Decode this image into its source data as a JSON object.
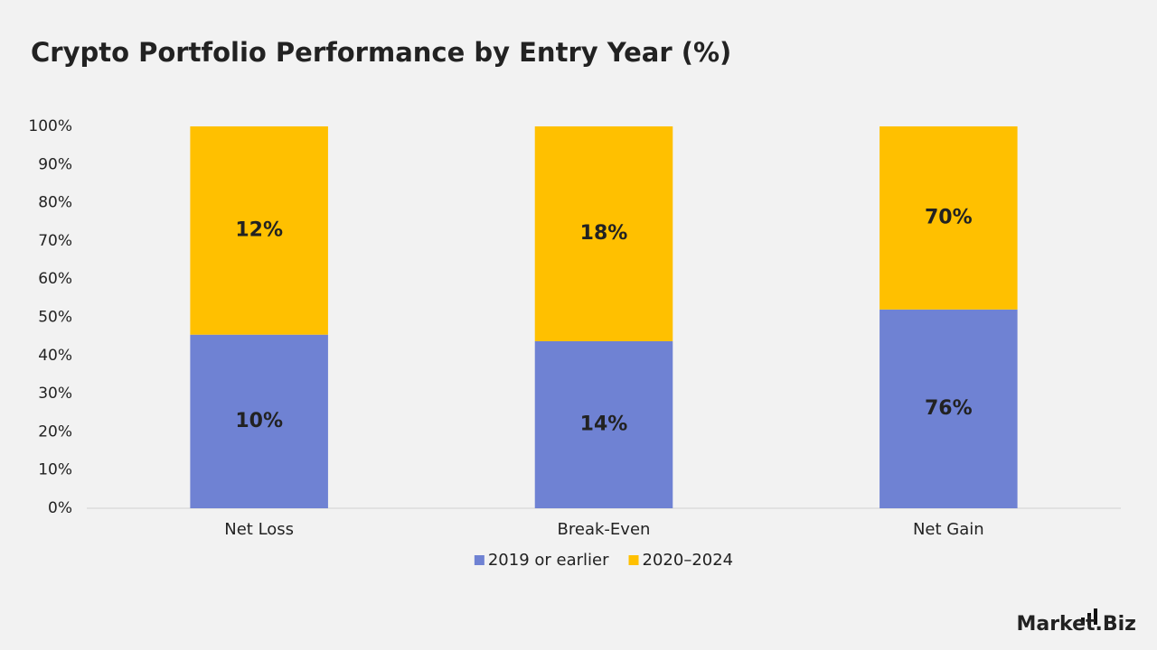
{
  "chart_data": {
    "type": "bar",
    "stacked": "percent",
    "title": "Crypto Portfolio Performance by Entry Year (%)",
    "categories": [
      "Net Loss",
      "Break-Even",
      "Net Gain"
    ],
    "series": [
      {
        "name": "2019 or earlier",
        "color": "#6f82d3",
        "values": [
          10,
          14,
          76
        ],
        "value_labels": [
          "10%",
          "14%",
          "76%"
        ]
      },
      {
        "name": "2020–2024",
        "color": "#ffc000",
        "values": [
          12,
          18,
          70
        ],
        "value_labels": [
          "12%",
          "18%",
          "70%"
        ]
      }
    ],
    "ylim": [
      0,
      100
    ],
    "yticks": [
      {
        "value": 0,
        "label": "0%"
      },
      {
        "value": 10,
        "label": "10%"
      },
      {
        "value": 20,
        "label": "20%"
      },
      {
        "value": 30,
        "label": "30%"
      },
      {
        "value": 40,
        "label": "40%"
      },
      {
        "value": 50,
        "label": "50%"
      },
      {
        "value": 60,
        "label": "60%"
      },
      {
        "value": 70,
        "label": "70%"
      },
      {
        "value": 80,
        "label": "80%"
      },
      {
        "value": 90,
        "label": "90%"
      },
      {
        "value": 100,
        "label": "100%"
      }
    ],
    "grid": false,
    "legend": "bottom"
  },
  "brand": "Market.Biz"
}
